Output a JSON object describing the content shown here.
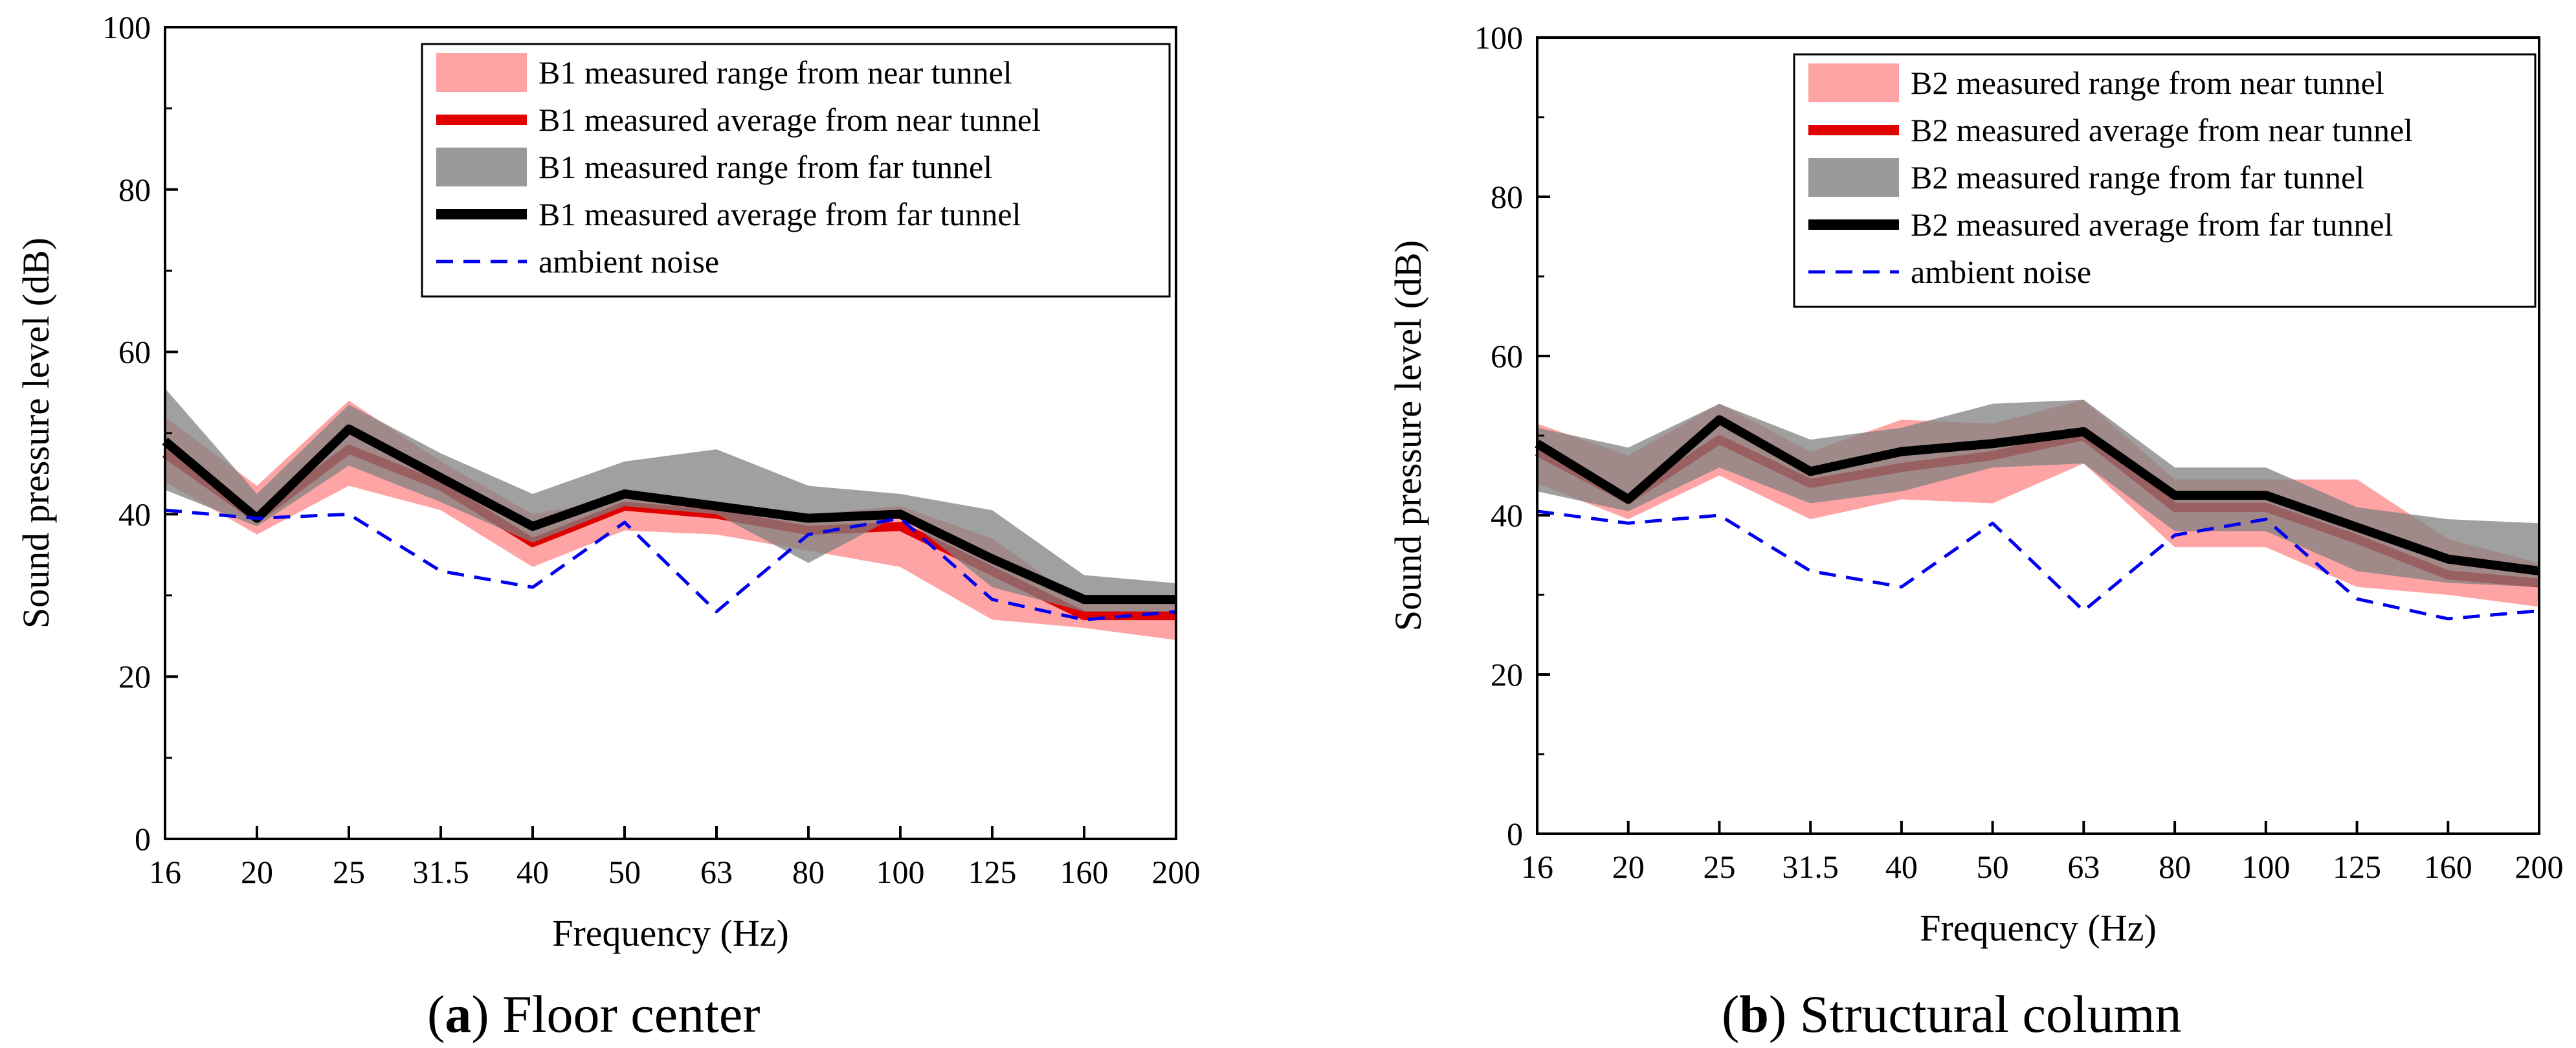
{
  "chart_data": [
    {
      "type": "area",
      "panel": "a",
      "xlabel": "Frequency (Hz)",
      "ylabel": "Sound pressure level (dB)",
      "categories": [
        "16",
        "20",
        "25",
        "31.5",
        "40",
        "50",
        "63",
        "80",
        "100",
        "125",
        "160",
        "200"
      ],
      "ylim": [
        0,
        100
      ],
      "yticks": [
        "0",
        "20",
        "40",
        "60",
        "80",
        "100"
      ],
      "legend_position": "top-right",
      "series": [
        {
          "name": "B1 measured range from near tunnel",
          "kind": "range",
          "color": "#ff9a9a",
          "lower": [
            44,
            37.5,
            43.5,
            40.5,
            33.5,
            38,
            37.5,
            35.5,
            33.5,
            27,
            26,
            24.5
          ],
          "upper": [
            52,
            43.5,
            54,
            46.5,
            40,
            42,
            41,
            40,
            41,
            37,
            29,
            29.5
          ]
        },
        {
          "name": "B1 measured average from near tunnel",
          "kind": "line",
          "color": "#e00000",
          "width": 14,
          "values": [
            47.5,
            39.5,
            48,
            43.5,
            36.5,
            41,
            40,
            38,
            38.5,
            33,
            27.5,
            27.5
          ]
        },
        {
          "name": "B1 measured range from far tunnel",
          "kind": "range",
          "color": "#808080",
          "lower": [
            43,
            38.5,
            46,
            41.5,
            36.5,
            41,
            40,
            34,
            40,
            31,
            28,
            28
          ],
          "upper": [
            55.5,
            42.5,
            53.5,
            47.5,
            42.5,
            46.5,
            48,
            43.5,
            42.5,
            40.5,
            32.5,
            31.5
          ]
        },
        {
          "name": "B1 measured average from far tunnel",
          "kind": "line",
          "color": "#000000",
          "width": 14,
          "values": [
            49,
            39.5,
            50.5,
            44.5,
            38.5,
            42.5,
            41,
            39.5,
            40,
            34.5,
            29.5,
            29.5
          ]
        },
        {
          "name": "ambient noise",
          "kind": "dashed",
          "color": "#0000ee",
          "width": 5,
          "values": [
            40.5,
            39.5,
            40,
            33,
            31,
            39,
            28,
            37.5,
            39.5,
            29.5,
            27,
            28
          ]
        }
      ],
      "caption_label": "a",
      "caption_text": "Floor center"
    },
    {
      "type": "area",
      "panel": "b",
      "xlabel": "Frequency (Hz)",
      "ylabel": "Sound pressure level (dB)",
      "categories": [
        "16",
        "20",
        "25",
        "31.5",
        "40",
        "50",
        "63",
        "80",
        "100",
        "125",
        "160",
        "200"
      ],
      "ylim": [
        0,
        100
      ],
      "yticks": [
        "0",
        "20",
        "40",
        "60",
        "80",
        "100"
      ],
      "legend_position": "top-right",
      "series": [
        {
          "name": "B2 measured range from near tunnel",
          "kind": "range",
          "color": "#ff9a9a",
          "lower": [
            44,
            39.5,
            45,
            39.5,
            42,
            41.5,
            46.5,
            36,
            36,
            31,
            30,
            28.5
          ],
          "upper": [
            51.5,
            47.5,
            54,
            48,
            52,
            51.5,
            54.5,
            44.5,
            44.5,
            44.5,
            37,
            34
          ]
        },
        {
          "name": "B2 measured average from near tunnel",
          "kind": "line",
          "color": "#e00000",
          "width": 14,
          "values": [
            48,
            42,
            49.5,
            44,
            46,
            47.5,
            50,
            41,
            41,
            37,
            32.5,
            31.5
          ]
        },
        {
          "name": "B2 measured range from far tunnel",
          "kind": "range",
          "color": "#808080",
          "lower": [
            43,
            40.5,
            46,
            41.5,
            43,
            46,
            46.5,
            38,
            38,
            33,
            31.5,
            31
          ]
        },
        {
          "name": "B2 measured average from far tunnel",
          "kind": "line",
          "color": "#000000",
          "width": 14,
          "values": [
            49,
            42,
            52,
            45.5,
            48,
            49,
            50.5,
            42.5,
            42.5,
            38.5,
            34.5,
            33
          ]
        },
        {
          "name": "ambient noise",
          "kind": "dashed",
          "color": "#0000ee",
          "width": 5,
          "values": [
            40.5,
            39,
            40,
            33,
            31,
            39,
            28,
            37.5,
            39.5,
            29.5,
            27,
            28
          ]
        }
      ],
      "caption_label": "b",
      "caption_text": "Structural column"
    }
  ]
}
